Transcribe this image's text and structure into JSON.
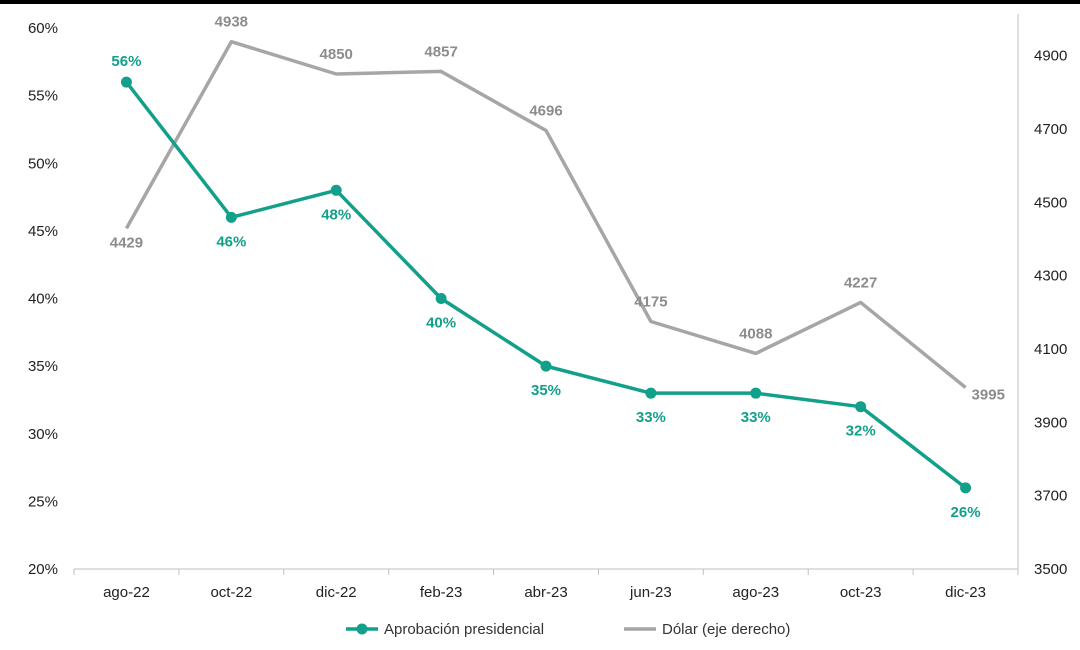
{
  "chart_data": {
    "type": "line",
    "title": "",
    "xlabel": "",
    "categories": [
      "ago-22",
      "oct-22",
      "dic-22",
      "feb-23",
      "abr-23",
      "jun-23",
      "ago-23",
      "oct-23",
      "dic-23"
    ],
    "left_axis": {
      "min": 20,
      "max": 60,
      "step": 5,
      "suffix": "%",
      "ticks": [
        "20%",
        "25%",
        "30%",
        "35%",
        "40%",
        "45%",
        "50%",
        "55%",
        "60%"
      ]
    },
    "right_axis": {
      "min": 3500,
      "max": 5000,
      "ticks": [
        "3500",
        "3700",
        "3900",
        "4100",
        "4300",
        "4500",
        "4700",
        "4900"
      ]
    },
    "series": [
      {
        "name": "Aprobación presidencial",
        "axis": "left",
        "color": "#12a08a",
        "marker": true,
        "values": [
          56,
          46,
          48,
          40,
          35,
          33,
          33,
          32,
          26
        ],
        "labels": [
          "56%",
          "46%",
          "48%",
          "40%",
          "35%",
          "33%",
          "33%",
          "32%",
          "26%"
        ]
      },
      {
        "name": "Dólar (eje derecho)",
        "axis": "right",
        "color": "#a6a6a6",
        "marker": false,
        "values": [
          4429,
          4938,
          4850,
          4857,
          4696,
          4175,
          4088,
          4227,
          3995
        ],
        "labels": [
          "4429",
          "4938",
          "4850",
          "4857",
          "4696",
          "4175",
          "4088",
          "4227",
          "3995"
        ]
      }
    ],
    "legend": "bottom-center",
    "grid": false
  }
}
